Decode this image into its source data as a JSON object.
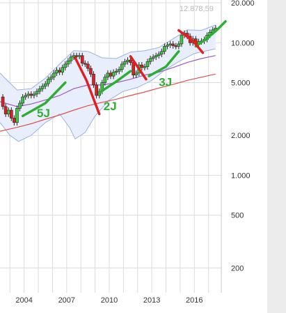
{
  "chart_data": {
    "type": "candlestick",
    "title": "",
    "xlabel": "",
    "ylabel": "",
    "y_scale": "log",
    "ylim": [
      130,
      21000
    ],
    "xlim": [
      2002.3,
      2017.9
    ],
    "grid": true,
    "x_ticks": [
      {
        "value": 2004,
        "label": "2004"
      },
      {
        "value": 2007,
        "label": "2007"
      },
      {
        "value": 2010,
        "label": "2010"
      },
      {
        "value": 2013,
        "label": "2013"
      },
      {
        "value": 2016,
        "label": "2016"
      }
    ],
    "y_ticks": [
      {
        "value": 20000,
        "label": "20.000"
      },
      {
        "value": 10000,
        "label": "10.000"
      },
      {
        "value": 5000,
        "label": "5.000"
      },
      {
        "value": 2000,
        "label": "2.000"
      },
      {
        "value": 1000,
        "label": "1.000"
      },
      {
        "value": 500,
        "label": "500"
      },
      {
        "value": 200,
        "label": "200"
      }
    ],
    "last_value_label": "12.878,59",
    "price_closes": [
      {
        "x": 2002.3,
        "y": 3900
      },
      {
        "x": 2002.5,
        "y": 3300
      },
      {
        "x": 2002.7,
        "y": 2900
      },
      {
        "x": 2002.9,
        "y": 3100
      },
      {
        "x": 2003.1,
        "y": 2700
      },
      {
        "x": 2003.3,
        "y": 2500
      },
      {
        "x": 2003.5,
        "y": 3200
      },
      {
        "x": 2003.7,
        "y": 3500
      },
      {
        "x": 2003.9,
        "y": 3900
      },
      {
        "x": 2004.1,
        "y": 4000
      },
      {
        "x": 2004.3,
        "y": 4100
      },
      {
        "x": 2004.5,
        "y": 4000
      },
      {
        "x": 2004.7,
        "y": 4100
      },
      {
        "x": 2004.9,
        "y": 4300
      },
      {
        "x": 2005.1,
        "y": 4500
      },
      {
        "x": 2005.3,
        "y": 4700
      },
      {
        "x": 2005.5,
        "y": 4900
      },
      {
        "x": 2005.7,
        "y": 5300
      },
      {
        "x": 2005.9,
        "y": 5500
      },
      {
        "x": 2006.1,
        "y": 5900
      },
      {
        "x": 2006.3,
        "y": 6200
      },
      {
        "x": 2006.5,
        "y": 6000
      },
      {
        "x": 2006.7,
        "y": 6500
      },
      {
        "x": 2006.9,
        "y": 6900
      },
      {
        "x": 2007.1,
        "y": 7300
      },
      {
        "x": 2007.3,
        "y": 7800
      },
      {
        "x": 2007.5,
        "y": 8000
      },
      {
        "x": 2007.7,
        "y": 7900
      },
      {
        "x": 2007.9,
        "y": 8000
      },
      {
        "x": 2008.1,
        "y": 7000
      },
      {
        "x": 2008.3,
        "y": 6900
      },
      {
        "x": 2008.5,
        "y": 6400
      },
      {
        "x": 2008.7,
        "y": 5800
      },
      {
        "x": 2008.9,
        "y": 4800
      },
      {
        "x": 2009.1,
        "y": 4000
      },
      {
        "x": 2009.3,
        "y": 4300
      },
      {
        "x": 2009.5,
        "y": 5000
      },
      {
        "x": 2009.7,
        "y": 5500
      },
      {
        "x": 2009.9,
        "y": 5900
      },
      {
        "x": 2010.1,
        "y": 5600
      },
      {
        "x": 2010.3,
        "y": 6000
      },
      {
        "x": 2010.5,
        "y": 6100
      },
      {
        "x": 2010.7,
        "y": 6300
      },
      {
        "x": 2010.9,
        "y": 6900
      },
      {
        "x": 2011.1,
        "y": 7200
      },
      {
        "x": 2011.3,
        "y": 7400
      },
      {
        "x": 2011.5,
        "y": 7100
      },
      {
        "x": 2011.7,
        "y": 5700
      },
      {
        "x": 2011.9,
        "y": 5900
      },
      {
        "x": 2012.1,
        "y": 6800
      },
      {
        "x": 2012.3,
        "y": 6500
      },
      {
        "x": 2012.5,
        "y": 6600
      },
      {
        "x": 2012.7,
        "y": 7200
      },
      {
        "x": 2012.9,
        "y": 7600
      },
      {
        "x": 2013.1,
        "y": 7800
      },
      {
        "x": 2013.3,
        "y": 8000
      },
      {
        "x": 2013.5,
        "y": 8200
      },
      {
        "x": 2013.7,
        "y": 8600
      },
      {
        "x": 2013.9,
        "y": 9400
      },
      {
        "x": 2014.1,
        "y": 9600
      },
      {
        "x": 2014.3,
        "y": 9800
      },
      {
        "x": 2014.5,
        "y": 9500
      },
      {
        "x": 2014.7,
        "y": 9400
      },
      {
        "x": 2014.9,
        "y": 9800
      },
      {
        "x": 2015.1,
        "y": 11400
      },
      {
        "x": 2015.3,
        "y": 11800
      },
      {
        "x": 2015.5,
        "y": 11200
      },
      {
        "x": 2015.7,
        "y": 10000
      },
      {
        "x": 2015.9,
        "y": 10700
      },
      {
        "x": 2016.1,
        "y": 9800
      },
      {
        "x": 2016.3,
        "y": 10200
      },
      {
        "x": 2016.5,
        "y": 10300
      },
      {
        "x": 2016.7,
        "y": 10600
      },
      {
        "x": 2016.9,
        "y": 11400
      },
      {
        "x": 2017.1,
        "y": 12000
      },
      {
        "x": 2017.3,
        "y": 12500
      },
      {
        "x": 2017.5,
        "y": 12900
      }
    ],
    "bollinger_upper": [
      {
        "x": 2002.3,
        "y": 5900
      },
      {
        "x": 2003.5,
        "y": 4400
      },
      {
        "x": 2004.5,
        "y": 4500
      },
      {
        "x": 2005.5,
        "y": 5400
      },
      {
        "x": 2006.5,
        "y": 6900
      },
      {
        "x": 2007.5,
        "y": 8700
      },
      {
        "x": 2008.5,
        "y": 8600
      },
      {
        "x": 2009.5,
        "y": 7700
      },
      {
        "x": 2010.5,
        "y": 7600
      },
      {
        "x": 2011.5,
        "y": 8500
      },
      {
        "x": 2012.5,
        "y": 8700
      },
      {
        "x": 2013.5,
        "y": 9200
      },
      {
        "x": 2014.5,
        "y": 10700
      },
      {
        "x": 2015.5,
        "y": 12500
      },
      {
        "x": 2016.5,
        "y": 12400
      },
      {
        "x": 2017.5,
        "y": 13600
      }
    ],
    "bollinger_lower": [
      {
        "x": 2002.3,
        "y": 2500
      },
      {
        "x": 2003.0,
        "y": 2000
      },
      {
        "x": 2003.6,
        "y": 1800
      },
      {
        "x": 2004.5,
        "y": 2000
      },
      {
        "x": 2005.5,
        "y": 2500
      },
      {
        "x": 2006.5,
        "y": 2900
      },
      {
        "x": 2007.2,
        "y": 2300
      },
      {
        "x": 2007.6,
        "y": 1880
      },
      {
        "x": 2008.3,
        "y": 2100
      },
      {
        "x": 2009.0,
        "y": 2800
      },
      {
        "x": 2010.0,
        "y": 3700
      },
      {
        "x": 2011.0,
        "y": 4300
      },
      {
        "x": 2012.0,
        "y": 4600
      },
      {
        "x": 2013.0,
        "y": 5200
      },
      {
        "x": 2014.0,
        "y": 6300
      },
      {
        "x": 2015.0,
        "y": 7300
      },
      {
        "x": 2016.0,
        "y": 8300
      },
      {
        "x": 2017.5,
        "y": 9000
      }
    ],
    "ma_purple": [
      {
        "x": 2002.3,
        "y": 3600
      },
      {
        "x": 2003.5,
        "y": 3300
      },
      {
        "x": 2004.5,
        "y": 3450
      },
      {
        "x": 2005.5,
        "y": 3700
      },
      {
        "x": 2006.5,
        "y": 4000
      },
      {
        "x": 2007.5,
        "y": 4500
      },
      {
        "x": 2008.5,
        "y": 4800
      },
      {
        "x": 2009.5,
        "y": 4800
      },
      {
        "x": 2010.5,
        "y": 5000
      },
      {
        "x": 2011.5,
        "y": 5300
      },
      {
        "x": 2012.5,
        "y": 5700
      },
      {
        "x": 2013.5,
        "y": 6000
      },
      {
        "x": 2014.5,
        "y": 6500
      },
      {
        "x": 2015.5,
        "y": 7100
      },
      {
        "x": 2016.5,
        "y": 7600
      },
      {
        "x": 2017.5,
        "y": 8000
      }
    ],
    "ma_red": [
      {
        "x": 2002.3,
        "y": 2150
      },
      {
        "x": 2003.5,
        "y": 2300
      },
      {
        "x": 2004.5,
        "y": 2450
      },
      {
        "x": 2005.5,
        "y": 2650
      },
      {
        "x": 2006.5,
        "y": 2850
      },
      {
        "x": 2007.5,
        "y": 3100
      },
      {
        "x": 2008.5,
        "y": 3350
      },
      {
        "x": 2009.5,
        "y": 3550
      },
      {
        "x": 2010.5,
        "y": 3750
      },
      {
        "x": 2011.5,
        "y": 4000
      },
      {
        "x": 2012.5,
        "y": 4250
      },
      {
        "x": 2013.5,
        "y": 4550
      },
      {
        "x": 2014.5,
        "y": 4850
      },
      {
        "x": 2015.5,
        "y": 5200
      },
      {
        "x": 2016.5,
        "y": 5500
      },
      {
        "x": 2017.5,
        "y": 5800
      }
    ],
    "annotations": {
      "labels": [
        {
          "text": "5J",
          "x": 2004.9,
          "y": 2750
        },
        {
          "text": "2J",
          "x": 2009.6,
          "y": 3100
        },
        {
          "text": "3J",
          "x": 2013.5,
          "y": 4700
        }
      ],
      "green_lines": [
        [
          {
            "x": 2003.9,
            "y": 2800
          },
          {
            "x": 2005.5,
            "y": 3500
          },
          {
            "x": 2006.9,
            "y": 5000
          }
        ],
        [
          {
            "x": 2009.3,
            "y": 4200
          },
          {
            "x": 2010.5,
            "y": 5100
          },
          {
            "x": 2011.5,
            "y": 6100
          }
        ],
        [
          {
            "x": 2012.8,
            "y": 5600
          },
          {
            "x": 2014.0,
            "y": 6600
          },
          {
            "x": 2014.9,
            "y": 8600
          }
        ],
        [
          {
            "x": 2016.1,
            "y": 9400
          },
          {
            "x": 2016.9,
            "y": 10800
          },
          {
            "x": 2017.6,
            "y": 12500
          },
          {
            "x": 2018.2,
            "y": 14500
          }
        ]
      ],
      "red_lines": [
        [
          {
            "x": 2007.6,
            "y": 7700
          },
          {
            "x": 2008.4,
            "y": 5200
          },
          {
            "x": 2009.3,
            "y": 2900
          }
        ],
        [
          {
            "x": 2011.5,
            "y": 7900
          },
          {
            "x": 2012.6,
            "y": 5300
          }
        ],
        [
          {
            "x": 2014.9,
            "y": 12400
          },
          {
            "x": 2015.9,
            "y": 10300
          },
          {
            "x": 2016.6,
            "y": 8400
          }
        ]
      ]
    },
    "colors": {
      "up": "#3cc83c",
      "down": "#e02020",
      "band_fill": "#e8eefb",
      "band_stroke": "#9ab2de",
      "ma_purple": "#9b59c6",
      "ma_red": "#e05050",
      "anno_green": "#2eae32",
      "anno_red": "#e02020",
      "grid": "#dcdcdc"
    }
  }
}
